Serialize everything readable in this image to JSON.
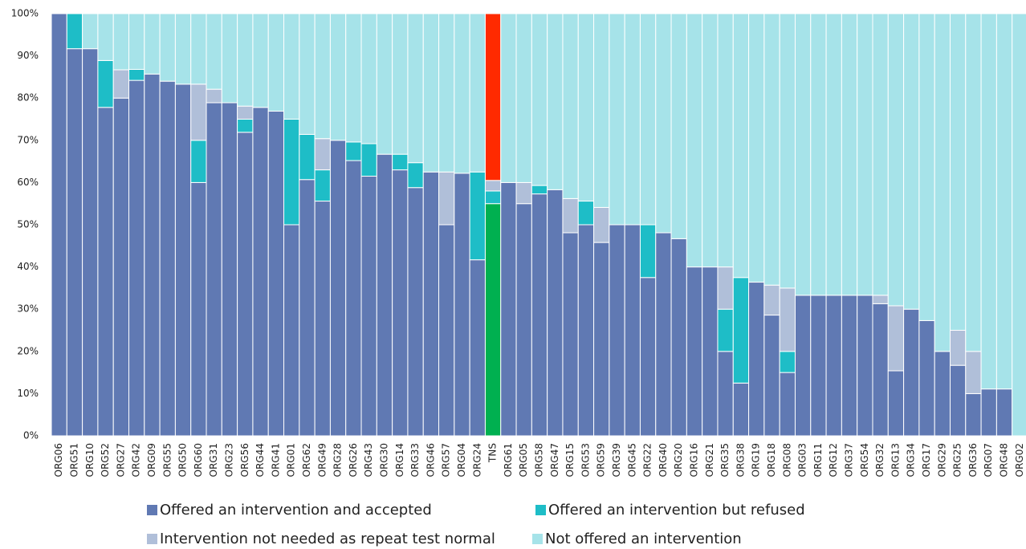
{
  "chart_data": {
    "type": "stacked_bar",
    "categories": [
      "ORG06",
      "ORG51",
      "ORG10",
      "ORG52",
      "ORG27",
      "ORG42",
      "ORG09",
      "ORG55",
      "ORG50",
      "ORG60",
      "ORG31",
      "ORG23",
      "ORG56",
      "ORG44",
      "ORG41",
      "ORG01",
      "ORG62",
      "ORG49",
      "ORG28",
      "ORG26",
      "ORG43",
      "ORG30",
      "ORG14",
      "ORG33",
      "ORG46",
      "ORG57",
      "ORG04",
      "ORG24",
      "TNS",
      "ORG61",
      "ORG05",
      "ORG58",
      "ORG47",
      "ORG15",
      "ORG53",
      "ORG59",
      "ORG39",
      "ORG45",
      "ORG22",
      "ORG40",
      "ORG20",
      "ORG16",
      "ORG21",
      "ORG35",
      "ORG38",
      "ORG19",
      "ORG18",
      "ORG08",
      "ORG03",
      "ORG11",
      "ORG12",
      "ORG37",
      "ORG54",
      "ORG32",
      "ORG13",
      "ORG34",
      "ORG17",
      "ORG29",
      "ORG25",
      "ORG36",
      "ORG07",
      "ORG48",
      "ORG02"
    ],
    "series": [
      {
        "name": "Offered an intervention and accepted",
        "color": "#6079b3",
        "values": [
          100,
          91.7,
          91.7,
          77.8,
          80,
          84.2,
          85.7,
          84,
          83.3,
          60,
          78.9,
          78.9,
          71.9,
          77.8,
          76.9,
          50,
          60.7,
          55.6,
          70,
          65.2,
          61.5,
          66.7,
          63,
          58.8,
          62.5,
          50,
          62.2,
          41.7,
          55,
          60,
          55,
          57.3,
          58.3,
          48.1,
          50,
          45.8,
          50,
          50,
          37.5,
          48.1,
          46.7,
          40,
          40,
          20,
          12.5,
          36.4,
          28.6,
          15,
          33.3,
          33.3,
          33.3,
          33.3,
          33.3,
          31.3,
          15.4,
          30,
          27.3,
          20,
          16.7,
          10,
          11.1,
          11.1,
          0
        ]
      },
      {
        "name": "Offered an intervention but refused",
        "color": "#1ebdc7",
        "values": [
          0,
          8.3,
          0,
          11.1,
          0,
          2.6,
          0,
          0,
          0,
          10,
          0,
          0,
          3.1,
          0,
          0,
          25,
          10.7,
          7.4,
          0,
          4.4,
          7.7,
          0,
          3.7,
          5.9,
          0,
          0,
          0,
          20.8,
          3,
          0,
          0,
          2,
          0,
          0,
          5.6,
          0,
          0,
          0,
          12.5,
          0,
          0,
          0,
          0,
          10,
          25,
          0,
          0,
          5,
          0,
          0,
          0,
          0,
          0,
          0,
          0,
          0,
          0,
          0,
          0,
          0,
          0,
          0,
          0
        ]
      },
      {
        "name": "Intervention not needed as repeat test normal",
        "color": "#b0bfd9",
        "values": [
          0,
          0,
          0,
          0,
          6.7,
          0,
          0,
          0,
          0,
          13.3,
          3.2,
          0,
          3.1,
          0,
          0,
          0,
          0,
          7.4,
          0,
          0,
          0,
          0,
          0,
          0,
          0,
          12.5,
          0,
          0,
          2.5,
          0,
          5,
          0,
          0,
          8.1,
          0,
          8.3,
          0,
          0,
          0,
          0,
          0,
          0,
          0,
          10,
          0,
          0,
          7.1,
          15,
          0,
          0,
          0,
          0,
          0,
          2,
          15.4,
          0,
          0,
          0,
          8.3,
          10,
          0,
          0,
          0
        ]
      },
      {
        "name": "Not offered an intervention",
        "color": "#a6e3e9",
        "values": [
          0,
          0,
          8.3,
          11.1,
          13.3,
          13.2,
          14.3,
          16,
          16.7,
          16.7,
          17.9,
          21.1,
          21.9,
          22.2,
          23.1,
          25,
          28.6,
          29.6,
          30,
          30.4,
          30.8,
          33.3,
          33.3,
          35.3,
          37.5,
          37.5,
          37.8,
          37.5,
          39.5,
          40,
          40,
          40.7,
          41.7,
          43.8,
          44.4,
          45.9,
          50,
          50,
          50,
          51.9,
          53.3,
          60,
          60,
          60,
          62.5,
          63.6,
          64.3,
          65,
          66.7,
          66.7,
          66.7,
          66.7,
          66.7,
          66.7,
          69.2,
          70,
          72.7,
          80,
          75,
          80,
          88.9,
          88.9,
          100
        ]
      }
    ],
    "highlight_index": 28,
    "highlight_colors": [
      "#00b050",
      "#1ebdc7",
      "#b0bfd9",
      "#ff2a00"
    ],
    "ylim": [
      0,
      100
    ],
    "yticks": [
      {
        "value": 0,
        "label": "0%"
      },
      {
        "value": 10,
        "label": "10%"
      },
      {
        "value": 20,
        "label": "20%"
      },
      {
        "value": 30,
        "label": "30%"
      },
      {
        "value": 40,
        "label": "40%"
      },
      {
        "value": 50,
        "label": "50%"
      },
      {
        "value": 60,
        "label": "60%"
      },
      {
        "value": 70,
        "label": "70%"
      },
      {
        "value": 80,
        "label": "80%"
      },
      {
        "value": 90,
        "label": "90%"
      },
      {
        "value": 100,
        "label": "100%"
      }
    ],
    "grid": true,
    "legend": "bottom"
  }
}
